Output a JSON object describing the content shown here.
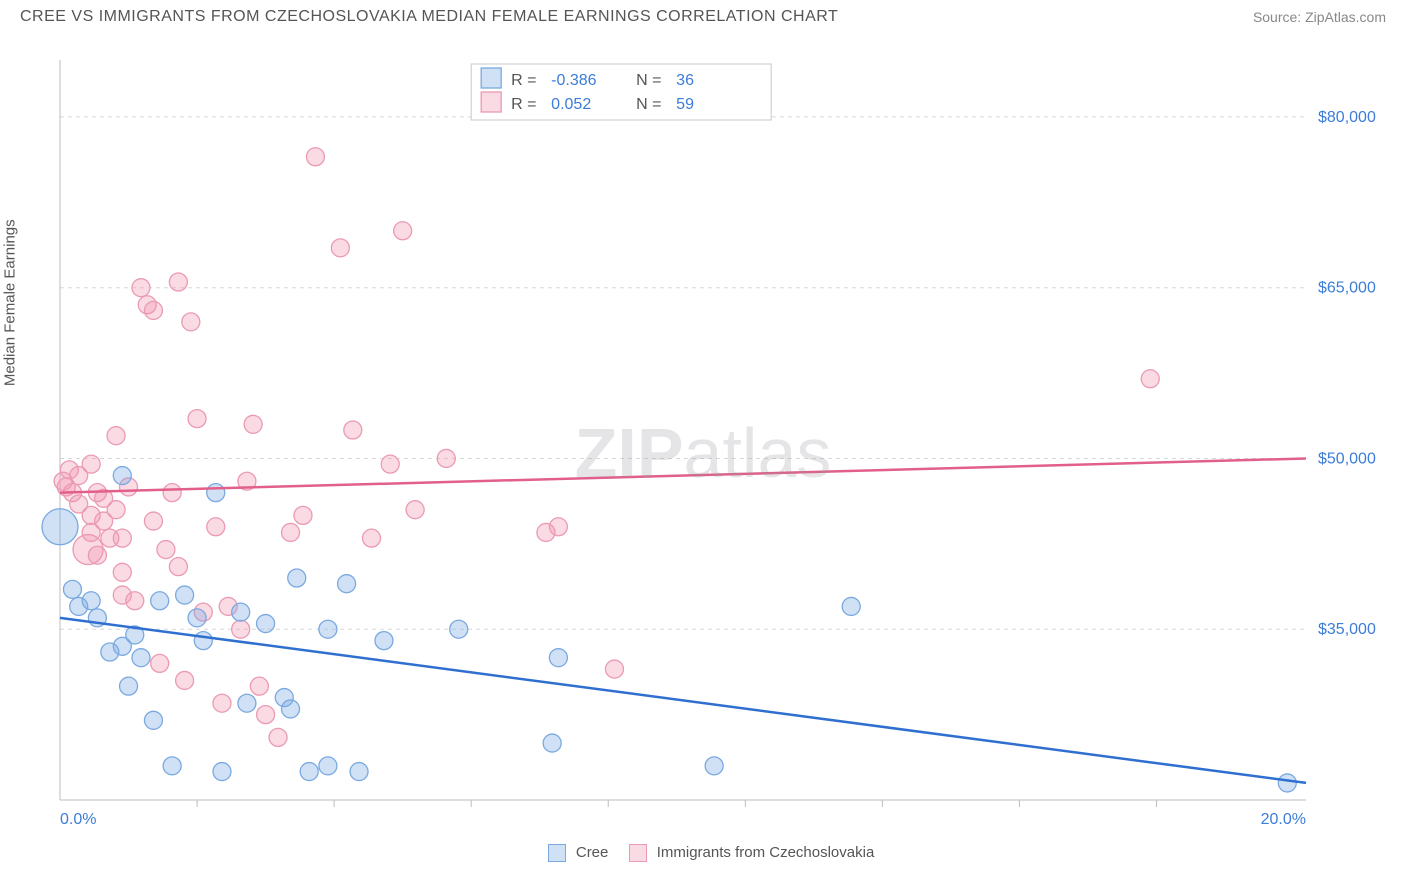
{
  "header": {
    "title": "CREE VS IMMIGRANTS FROM CZECHOSLOVAKIA MEDIAN FEMALE EARNINGS CORRELATION CHART",
    "source": "Source: ZipAtlas.com"
  },
  "watermark": {
    "zip": "ZIP",
    "atlas": "atlas"
  },
  "ylabel": "Median Female Earnings",
  "bottom_legend": {
    "series1": "Cree",
    "series2": "Immigrants from Czechoslovakia"
  },
  "top_legend": {
    "row1": {
      "r_label": "R =",
      "r_val": "-0.386",
      "n_label": "N =",
      "n_val": "36"
    },
    "row2": {
      "r_label": "R =",
      "r_val": "0.052",
      "n_label": "N =",
      "n_val": "59"
    }
  },
  "chart": {
    "type": "scatter",
    "xlim": [
      0,
      20
    ],
    "ylim": [
      20000,
      85000
    ],
    "x_tick_labels": {
      "min": "0.0%",
      "max": "20.0%"
    },
    "x_minor_ticks": [
      2.2,
      4.4,
      6.6,
      8.8,
      11.0,
      13.2,
      15.4,
      17.6
    ],
    "y_grid": [
      35000,
      50000,
      65000,
      80000
    ],
    "y_tick_labels": [
      "$35,000",
      "$50,000",
      "$65,000",
      "$80,000"
    ],
    "grid_color": "#d8d8d8",
    "axis_color": "#bdbdbd",
    "background_color": "#ffffff",
    "label_color": "#3b7dd8",
    "series": {
      "cree": {
        "color_fill": "rgba(120,170,230,0.35)",
        "color_stroke": "#7aa9e0",
        "line_color": "#2f6fd0",
        "radius": 9,
        "trend": {
          "x1": 0,
          "y1": 36000,
          "x2": 20,
          "y2": 21500
        },
        "points": [
          [
            0.0,
            44000,
            18
          ],
          [
            0.2,
            38500,
            9
          ],
          [
            0.3,
            37000,
            9
          ],
          [
            0.5,
            37500,
            9
          ],
          [
            0.6,
            36000,
            9
          ],
          [
            0.8,
            33000,
            9
          ],
          [
            1.0,
            33500,
            9
          ],
          [
            1.0,
            48500,
            9
          ],
          [
            1.1,
            30000,
            9
          ],
          [
            1.2,
            34500,
            9
          ],
          [
            1.3,
            32500,
            9
          ],
          [
            1.5,
            27000,
            9
          ],
          [
            1.6,
            37500,
            9
          ],
          [
            1.8,
            23000,
            9
          ],
          [
            2.0,
            38000,
            9
          ],
          [
            2.2,
            36000,
            9
          ],
          [
            2.3,
            34000,
            9
          ],
          [
            2.5,
            47000,
            9
          ],
          [
            2.6,
            22500,
            9
          ],
          [
            2.9,
            36500,
            9
          ],
          [
            3.0,
            28500,
            9
          ],
          [
            3.3,
            35500,
            9
          ],
          [
            3.6,
            29000,
            9
          ],
          [
            3.7,
            28000,
            9
          ],
          [
            3.8,
            39500,
            9
          ],
          [
            4.0,
            22500,
            9
          ],
          [
            4.3,
            35000,
            9
          ],
          [
            4.3,
            23000,
            9
          ],
          [
            4.6,
            39000,
            9
          ],
          [
            4.8,
            22500,
            9
          ],
          [
            5.2,
            34000,
            9
          ],
          [
            6.4,
            35000,
            9
          ],
          [
            8.0,
            32500,
            9
          ],
          [
            7.9,
            25000,
            9
          ],
          [
            10.5,
            23000,
            9
          ],
          [
            12.7,
            37000,
            9
          ],
          [
            19.7,
            21500,
            9
          ]
        ]
      },
      "czech": {
        "color_fill": "rgba(240,150,175,0.35)",
        "color_stroke": "#eb9ab3",
        "line_color": "#e15f8a",
        "radius": 9,
        "trend": {
          "x1": 0,
          "y1": 47000,
          "x2": 20,
          "y2": 50000
        },
        "points": [
          [
            0.05,
            48000,
            9
          ],
          [
            0.1,
            47500,
            9
          ],
          [
            0.15,
            49000,
            9
          ],
          [
            0.2,
            47000,
            9
          ],
          [
            0.3,
            46000,
            9
          ],
          [
            0.3,
            48500,
            9
          ],
          [
            0.45,
            42000,
            15
          ],
          [
            0.5,
            49500,
            9
          ],
          [
            0.5,
            45000,
            9
          ],
          [
            0.5,
            43500,
            9
          ],
          [
            0.6,
            47000,
            9
          ],
          [
            0.6,
            41500,
            9
          ],
          [
            0.7,
            44500,
            9
          ],
          [
            0.7,
            46500,
            9
          ],
          [
            0.8,
            43000,
            9
          ],
          [
            0.9,
            52000,
            9
          ],
          [
            0.9,
            45500,
            9
          ],
          [
            1.0,
            43000,
            9
          ],
          [
            1.0,
            40000,
            9
          ],
          [
            1.0,
            38000,
            9
          ],
          [
            1.1,
            47500,
            9
          ],
          [
            1.2,
            37500,
            9
          ],
          [
            1.3,
            65000,
            9
          ],
          [
            1.4,
            63500,
            9
          ],
          [
            1.5,
            63000,
            9
          ],
          [
            1.5,
            44500,
            9
          ],
          [
            1.6,
            32000,
            9
          ],
          [
            1.7,
            42000,
            9
          ],
          [
            1.8,
            47000,
            9
          ],
          [
            1.9,
            65500,
            9
          ],
          [
            1.9,
            40500,
            9
          ],
          [
            2.0,
            30500,
            9
          ],
          [
            2.1,
            62000,
            9
          ],
          [
            2.2,
            53500,
            9
          ],
          [
            2.3,
            36500,
            9
          ],
          [
            2.5,
            44000,
            9
          ],
          [
            2.6,
            28500,
            9
          ],
          [
            2.7,
            37000,
            9
          ],
          [
            2.9,
            35000,
            9
          ],
          [
            3.0,
            48000,
            9
          ],
          [
            3.1,
            53000,
            9
          ],
          [
            3.2,
            30000,
            9
          ],
          [
            3.3,
            27500,
            9
          ],
          [
            3.5,
            25500,
            9
          ],
          [
            3.7,
            43500,
            9
          ],
          [
            3.9,
            45000,
            9
          ],
          [
            4.1,
            76500,
            9
          ],
          [
            4.5,
            68500,
            9
          ],
          [
            4.7,
            52500,
            9
          ],
          [
            5.0,
            43000,
            9
          ],
          [
            5.3,
            49500,
            9
          ],
          [
            5.5,
            70000,
            9
          ],
          [
            5.7,
            45500,
            9
          ],
          [
            6.2,
            50000,
            9
          ],
          [
            7.8,
            43500,
            9
          ],
          [
            8.0,
            44000,
            9
          ],
          [
            8.9,
            31500,
            9
          ],
          [
            17.5,
            57000,
            9
          ]
        ]
      }
    }
  }
}
